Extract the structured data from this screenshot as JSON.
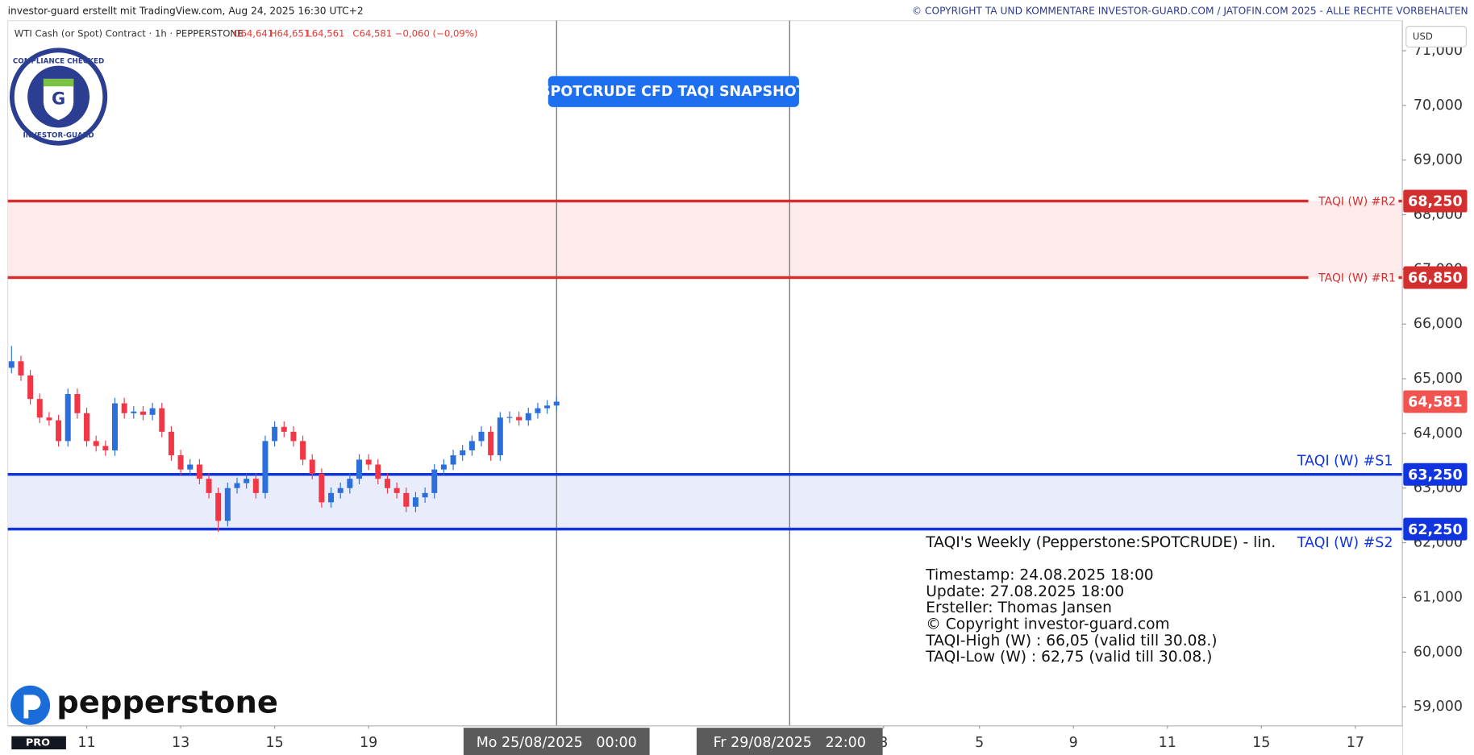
{
  "header": {
    "left": "investor-guard erstellt mit TradingView.com, Aug 24, 2025 16:30 UTC+2",
    "right": "© COPYRIGHT TA UND KOMMENTARE INVESTOR-GUARD.COM / JATOFIN.COM 2025 - ALLE RECHTE VORBEHALTEN"
  },
  "legend": {
    "symbol": "WTI Cash (or Spot) Contract · 1h · PEPPERSTONE",
    "open": "O64,641",
    "high": "H64,651",
    "low": "L64,561",
    "close": "C64,581",
    "change": "−0,060 (−0,09%)"
  },
  "badge": {
    "top": "COMPLIANCE CHECKED",
    "bottom": "INVESTOR-GUARD",
    "letter": "G"
  },
  "logo": "pepperstone",
  "tv_logo": "PRO",
  "chart_data": {
    "type": "candlestick",
    "currency": "USD",
    "annotation": "SPOTCRUDE CFD TAQI SNAPSHOT",
    "up_color": "#2a6fdb",
    "down_color": "#f23645",
    "open": [
      65200,
      65320,
      65060,
      64630,
      64290,
      64240,
      63860,
      64720,
      64370,
      63860,
      63770,
      63690,
      64550,
      64370,
      64400,
      64340,
      64460,
      64030,
      63600,
      63340,
      63430,
      63170,
      62910,
      62400,
      63000,
      63090,
      63170,
      62910,
      63860,
      64120,
      64030,
      63860,
      63520,
      63260,
      62740,
      62910,
      63000,
      63170,
      63520,
      63430,
      63170,
      63000,
      62910,
      62660,
      62830,
      62910,
      63340,
      63430,
      63600,
      63690,
      63860,
      64030,
      63600,
      64290,
      64300,
      64240,
      64370,
      64460,
      64510
    ],
    "high": [
      65600,
      65420,
      65160,
      64730,
      64390,
      64340,
      64820,
      64820,
      64470,
      63960,
      63870,
      64650,
      64650,
      64500,
      64500,
      64560,
      64560,
      64130,
      63700,
      63530,
      63530,
      63270,
      63010,
      63100,
      63190,
      63270,
      63270,
      63960,
      64220,
      64220,
      64130,
      63960,
      63620,
      63360,
      63010,
      63100,
      63270,
      63620,
      63620,
      63530,
      63270,
      63100,
      63010,
      62930,
      63010,
      63440,
      63530,
      63700,
      63790,
      63960,
      64130,
      64130,
      64390,
      64400,
      64400,
      64470,
      64560,
      64610,
      64681
    ],
    "low": [
      65100,
      64960,
      64530,
      64190,
      64140,
      63760,
      63760,
      64270,
      63760,
      63670,
      63590,
      63590,
      64270,
      64270,
      64240,
      64240,
      63930,
      63500,
      63240,
      63240,
      63070,
      62810,
      62200,
      62300,
      62900,
      62990,
      62810,
      62810,
      63760,
      63930,
      63760,
      63420,
      63160,
      62640,
      62640,
      62810,
      62900,
      63070,
      63330,
      63070,
      62900,
      62810,
      62560,
      62560,
      62730,
      62810,
      63240,
      63330,
      63500,
      63590,
      63760,
      63500,
      63500,
      64190,
      64140,
      64140,
      64270,
      64360,
      64410
    ],
    "close": [
      65320,
      65060,
      64630,
      64290,
      64240,
      63860,
      64720,
      64370,
      63860,
      63770,
      63690,
      64550,
      64370,
      64400,
      64340,
      64460,
      64030,
      63600,
      63340,
      63430,
      63170,
      62910,
      62400,
      63000,
      63090,
      63170,
      62910,
      63860,
      64120,
      64030,
      63860,
      63520,
      63260,
      62740,
      62910,
      63000,
      63170,
      63520,
      63430,
      63170,
      63000,
      62910,
      62660,
      62830,
      62910,
      63340,
      63430,
      63600,
      63690,
      63860,
      64030,
      63600,
      64290,
      64300,
      64240,
      64370,
      64460,
      64510,
      64581
    ],
    "last_price": {
      "value": 64581,
      "label": "64,581"
    },
    "ylim": [
      58650,
      71550
    ],
    "yticks": [
      {
        "value": 59000,
        "label": "59,000"
      },
      {
        "value": 60000,
        "label": "60,000"
      },
      {
        "value": 61000,
        "label": "61,000"
      },
      {
        "value": 62000,
        "label": "62,000"
      },
      {
        "value": 63000,
        "label": "63,000"
      },
      {
        "value": 64000,
        "label": "64,000"
      },
      {
        "value": 65000,
        "label": "65,000"
      },
      {
        "value": 66000,
        "label": "66,000"
      },
      {
        "value": 67000,
        "label": "67,000"
      },
      {
        "value": 68000,
        "label": "68,000"
      },
      {
        "value": 69000,
        "label": "69,000"
      },
      {
        "value": 70000,
        "label": "70,000"
      },
      {
        "value": 71000,
        "label": "71,000"
      }
    ],
    "xlim": [
      -0.4,
      148
    ],
    "xticks": [
      {
        "value": 8,
        "label": "11"
      },
      {
        "value": 18,
        "label": "13"
      },
      {
        "value": 28,
        "label": "15"
      },
      {
        "value": 38,
        "label": "19"
      },
      {
        "value": 92.8,
        "label": "3"
      },
      {
        "value": 103,
        "label": "5"
      },
      {
        "value": 113,
        "label": "9"
      },
      {
        "value": 123,
        "label": "11"
      },
      {
        "value": 133,
        "label": "15"
      },
      {
        "value": 143,
        "label": "17"
      }
    ],
    "markers": [
      {
        "x": 58,
        "label": "Mo 25/08/2025   00:00"
      },
      {
        "x": 82.8,
        "label": "Fr 29/08/2025   22:00"
      }
    ],
    "levels": [
      {
        "name": "TAQI (W) #R2",
        "value": 68250,
        "label": "68,250",
        "color": "#d32f2f"
      },
      {
        "name": "TAQI (W) #R1",
        "value": 66850,
        "label": "66,850",
        "color": "#d32f2f"
      },
      {
        "name": "TAQI (W) #S1",
        "value": 63250,
        "label": "63,250",
        "color": "#1035e0"
      },
      {
        "name": "TAQI (W) #S2",
        "value": 62250,
        "label": "62,250",
        "color": "#1035e0"
      }
    ],
    "zones": [
      {
        "levels": [
          0,
          1
        ],
        "color": "#fdeaea"
      },
      {
        "levels": [
          2,
          3
        ],
        "color": "#e9edfb"
      }
    ]
  },
  "info": {
    "lines": [
      "TAQI's Weekly (Pepperstone:SPOTCRUDE) - lin.",
      "",
      "Timestamp: 24.08.2025 18:00",
      "Update: 27.08.2025 18:00",
      "Ersteller: Thomas Jansen",
      "© Copyright investor-guard.com",
      "TAQI-High (W) : 66,05 (valid till 30.08.)",
      "TAQI-Low (W) : 62,75 (valid till 30.08.)"
    ]
  }
}
